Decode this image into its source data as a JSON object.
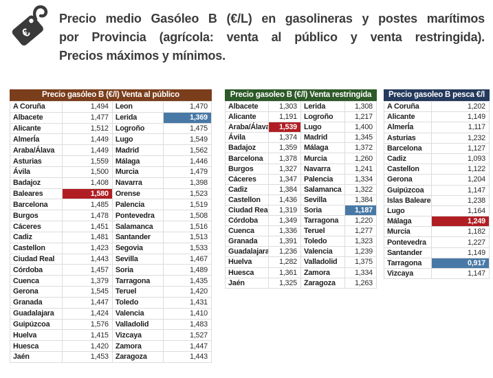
{
  "title": {
    "text": "Precio medio Gasóleo B (€/L) en gasolineras y postes marítimos por Provincia (agrícola: venta al público y venta restringida). Precios máximos y mínimos.",
    "lines": [
      "Precio medio Gasóleo B (€/L) en gasolineras y postes marítimos",
      "por Provincia (agrícola: venta al público y venta restringida).",
      "Precios máximos y mínimos."
    ],
    "icon": "price-tag-euro-icon",
    "color": "#3b3b3b"
  },
  "colors": {
    "max_highlight": "#b01e23",
    "min_highlight": "#4879a6",
    "table1_header_bg": "#7b3e1c",
    "table2_header_bg": "#2d5a28",
    "table3_header_bg": "#24395c",
    "cell_border": "#dcdcdc"
  },
  "chart_data": [
    {
      "type": "table",
      "id": "venta-al-publico",
      "title": "Precio gasóleo B (€/l) Venta al público",
      "header_bg": "#7b3e1c",
      "rows": [
        [
          {
            "n": "A Coruña",
            "v": "1,494"
          },
          {
            "n": "Leon",
            "v": "1,470"
          }
        ],
        [
          {
            "n": "Albacete",
            "v": "1,477"
          },
          {
            "n": "Lerida",
            "v": "1,369",
            "hl": "min"
          }
        ],
        [
          {
            "n": "Alicante",
            "v": "1,512"
          },
          {
            "n": "Logroño",
            "v": "1,475"
          }
        ],
        [
          {
            "n": "AlmerÍa",
            "v": "1,449"
          },
          {
            "n": "Lugo",
            "v": "1,549"
          }
        ],
        [
          {
            "n": "Araba/Álava",
            "v": "1,449"
          },
          {
            "n": "Madrid",
            "v": "1,562"
          }
        ],
        [
          {
            "n": "Asturias",
            "v": "1,559"
          },
          {
            "n": "Málaga",
            "v": "1,446"
          }
        ],
        [
          {
            "n": "Ávila",
            "v": "1,500"
          },
          {
            "n": "Murcia",
            "v": "1,479"
          }
        ],
        [
          {
            "n": "Badajoz",
            "v": "1,408"
          },
          {
            "n": "Navarra",
            "v": "1,398"
          }
        ],
        [
          {
            "n": "Baleares",
            "v": "1,580",
            "hl": "max"
          },
          {
            "n": "Orense",
            "v": "1,523"
          }
        ],
        [
          {
            "n": "Barcelona",
            "v": "1,485"
          },
          {
            "n": "Palencia",
            "v": "1,519"
          }
        ],
        [
          {
            "n": "Burgos",
            "v": "1,478"
          },
          {
            "n": "Pontevedra",
            "v": "1,508"
          }
        ],
        [
          {
            "n": "Cáceres",
            "v": "1,451"
          },
          {
            "n": "Salamanca",
            "v": "1,516"
          }
        ],
        [
          {
            "n": "Cadiz",
            "v": "1,481"
          },
          {
            "n": "Santander",
            "v": "1,513"
          }
        ],
        [
          {
            "n": "Castellon",
            "v": "1,423"
          },
          {
            "n": "Segovia",
            "v": "1,533"
          }
        ],
        [
          {
            "n": "Ciudad Real",
            "v": "1,443"
          },
          {
            "n": "Sevilla",
            "v": "1,467"
          }
        ],
        [
          {
            "n": "Córdoba",
            "v": "1,457"
          },
          {
            "n": "Soria",
            "v": "1,489"
          }
        ],
        [
          {
            "n": "Cuenca",
            "v": "1,379"
          },
          {
            "n": "Tarragona",
            "v": "1,435"
          }
        ],
        [
          {
            "n": "Gerona",
            "v": "1,545"
          },
          {
            "n": "Teruel",
            "v": "1,420"
          }
        ],
        [
          {
            "n": "Granada",
            "v": "1,447"
          },
          {
            "n": "Toledo",
            "v": "1,431"
          }
        ],
        [
          {
            "n": "Guadalajara",
            "v": "1,424"
          },
          {
            "n": "Valencia",
            "v": "1,410"
          }
        ],
        [
          {
            "n": "Guipúzcoa",
            "v": "1,576"
          },
          {
            "n": "Valladolid",
            "v": "1,483"
          }
        ],
        [
          {
            "n": "Huelva",
            "v": "1,415"
          },
          {
            "n": "Vizcaya",
            "v": "1,527"
          }
        ],
        [
          {
            "n": "Huesca",
            "v": "1,420"
          },
          {
            "n": "Zamora",
            "v": "1,447"
          }
        ],
        [
          {
            "n": "Jaén",
            "v": "1,453"
          },
          {
            "n": "Zaragoza",
            "v": "1,443"
          }
        ]
      ]
    },
    {
      "type": "table",
      "id": "venta-restringida",
      "title": "Precio gasoleo B (€/l) Venta restringida",
      "header_bg": "#2d5a28",
      "rows": [
        [
          {
            "n": "Albacete",
            "v": "1,303"
          },
          {
            "n": "Lerida",
            "v": "1,308"
          }
        ],
        [
          {
            "n": "Alicante",
            "v": "1,191"
          },
          {
            "n": "Logroño",
            "v": "1,217"
          }
        ],
        [
          {
            "n": "Araba/Álava",
            "v": "1,539",
            "hl": "max"
          },
          {
            "n": "Lugo",
            "v": "1,400"
          }
        ],
        [
          {
            "n": "Ávila",
            "v": "1,374"
          },
          {
            "n": "Madrid",
            "v": "1,345"
          }
        ],
        [
          {
            "n": "Badajoz",
            "v": "1,359"
          },
          {
            "n": "Málaga",
            "v": "1,372"
          }
        ],
        [
          {
            "n": "Barcelona",
            "v": "1,378"
          },
          {
            "n": "Murcia",
            "v": "1,260"
          }
        ],
        [
          {
            "n": "Burgos",
            "v": "1,327"
          },
          {
            "n": "Navarra",
            "v": "1,241"
          }
        ],
        [
          {
            "n": "Cáceres",
            "v": "1,347"
          },
          {
            "n": "Palencia",
            "v": "1,334"
          }
        ],
        [
          {
            "n": "Cadiz",
            "v": "1,384"
          },
          {
            "n": "Salamanca",
            "v": "1,322"
          }
        ],
        [
          {
            "n": "Castellon",
            "v": "1,436"
          },
          {
            "n": "Sevilla",
            "v": "1,384"
          }
        ],
        [
          {
            "n": "Ciudad Real",
            "v": "1,319"
          },
          {
            "n": "Soria",
            "v": "1,187",
            "hl": "min"
          }
        ],
        [
          {
            "n": "Córdoba",
            "v": "1,349"
          },
          {
            "n": "Tarragona",
            "v": "1,220"
          }
        ],
        [
          {
            "n": "Cuenca",
            "v": "1,336"
          },
          {
            "n": "Teruel",
            "v": "1,277"
          }
        ],
        [
          {
            "n": "Granada",
            "v": "1,391"
          },
          {
            "n": "Toledo",
            "v": "1,323"
          }
        ],
        [
          {
            "n": "Guadalajara",
            "v": "1,236"
          },
          {
            "n": "Valencia",
            "v": "1,239"
          }
        ],
        [
          {
            "n": "Huelva",
            "v": "1,282"
          },
          {
            "n": "Valladolid",
            "v": "1,375"
          }
        ],
        [
          {
            "n": "Huesca",
            "v": "1,361"
          },
          {
            "n": "Zamora",
            "v": "1,334"
          }
        ],
        [
          {
            "n": "Jaén",
            "v": "1,325"
          },
          {
            "n": "Zaragoza",
            "v": "1,263"
          }
        ]
      ]
    },
    {
      "type": "table",
      "id": "pesca",
      "title": "Precio gasoleo B pesca €/l",
      "header_bg": "#24395c",
      "rows": [
        [
          {
            "n": "A Coruña",
            "v": "1,202"
          }
        ],
        [
          {
            "n": "Alicante",
            "v": "1,149"
          }
        ],
        [
          {
            "n": "AlmerÍa",
            "v": "1,117"
          }
        ],
        [
          {
            "n": "Asturias",
            "v": "1,232"
          }
        ],
        [
          {
            "n": "Barcelona",
            "v": "1,127"
          }
        ],
        [
          {
            "n": "Cadiz",
            "v": "1,093"
          }
        ],
        [
          {
            "n": "Castellon",
            "v": "1,122"
          }
        ],
        [
          {
            "n": "Gerona",
            "v": "1,204"
          }
        ],
        [
          {
            "n": "Guipúzcoa",
            "v": "1,147"
          }
        ],
        [
          {
            "n": "Islas Baleares",
            "v": "1,238"
          }
        ],
        [
          {
            "n": "Lugo",
            "v": "1,164"
          }
        ],
        [
          {
            "n": "Málaga",
            "v": "1,249",
            "hl": "max"
          }
        ],
        [
          {
            "n": "Murcia",
            "v": "1,182"
          }
        ],
        [
          {
            "n": "Pontevedra",
            "v": "1,227"
          }
        ],
        [
          {
            "n": "Santander",
            "v": "1,149"
          }
        ],
        [
          {
            "n": "Tarragona",
            "v": "0,917",
            "hl": "min"
          }
        ],
        [
          {
            "n": "Vizcaya",
            "v": "1,147"
          }
        ]
      ]
    }
  ]
}
